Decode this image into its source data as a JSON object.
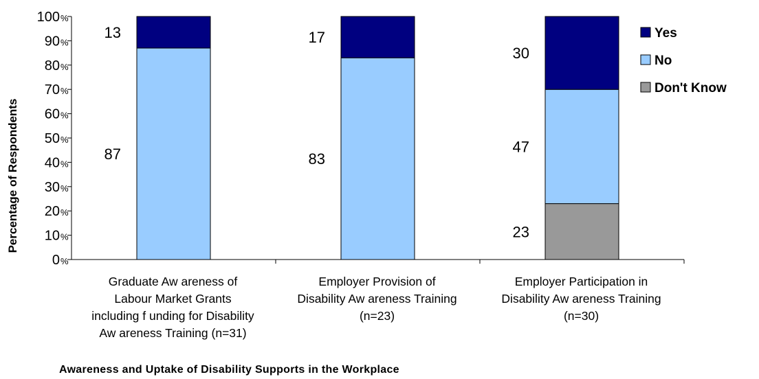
{
  "chart_data": {
    "type": "bar",
    "stacked": true,
    "title": "Awareness and Uptake of Disability Supports in the Workplace",
    "ylabel": "Percentage of Respondents",
    "ylim": [
      0,
      100
    ],
    "yticks": [
      0,
      10,
      20,
      30,
      40,
      50,
      60,
      70,
      80,
      90,
      100
    ],
    "ytick_suffix": "%",
    "grid": false,
    "legend_position": "right",
    "categories": [
      [
        "Graduate Aw areness of",
        "Labour Market Grants",
        "including f unding for Disability",
        "Aw areness Training (n=31)"
      ],
      [
        "Employer Provision of",
        "Disability Aw areness Training",
        "(n=23)"
      ],
      [
        "Employer Participation in",
        "Disability Aw areness Training",
        "(n=30)"
      ]
    ],
    "series": [
      {
        "name": "Don't Know",
        "color": "#999999",
        "values": [
          0,
          0,
          23
        ],
        "labels": [
          "",
          "",
          "23"
        ]
      },
      {
        "name": "No",
        "color": "#99ccff",
        "values": [
          87,
          83,
          47
        ],
        "labels": [
          "87",
          "83",
          "47"
        ]
      },
      {
        "name": "Yes",
        "color": "#000080",
        "values": [
          13,
          17,
          30
        ],
        "labels": [
          "13",
          "17",
          "30"
        ]
      }
    ],
    "legend_order": [
      "Yes",
      "No",
      "Don't Know"
    ]
  }
}
